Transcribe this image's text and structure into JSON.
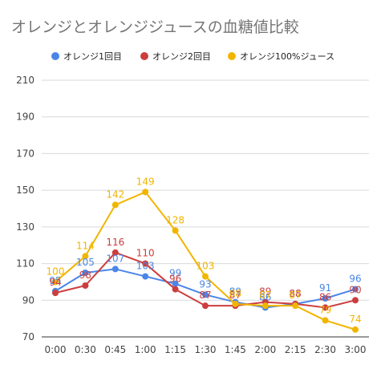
{
  "chart_data": {
    "type": "line",
    "title": "オレンジとオレンジジュースの血糖値比較",
    "xlabel": "",
    "ylabel": "",
    "categories": [
      "0:00",
      "0:30",
      "0:45",
      "1:00",
      "1:15",
      "1:30",
      "1:45",
      "2:00",
      "2:15",
      "2:30",
      "3:00"
    ],
    "ylim": [
      70,
      210
    ],
    "yticks": [
      70,
      90,
      110,
      130,
      150,
      170,
      190,
      210
    ],
    "grid": true,
    "legend_position": "top",
    "series": [
      {
        "name": "オレンジ1回目",
        "color": "#4a86e8",
        "values": [
          95,
          105,
          107,
          103,
          99,
          93,
          89,
          86,
          88,
          91,
          96
        ]
      },
      {
        "name": "オレンジ2回目",
        "color": "#cc3e3e",
        "values": [
          94,
          98,
          116,
          110,
          96,
          87,
          87,
          89,
          88,
          86,
          90
        ]
      },
      {
        "name": "オレンジ100%ジュース",
        "color": "#f1b500",
        "values": [
          100,
          114,
          142,
          149,
          128,
          103,
          88,
          87,
          87,
          79,
          74
        ]
      }
    ]
  }
}
